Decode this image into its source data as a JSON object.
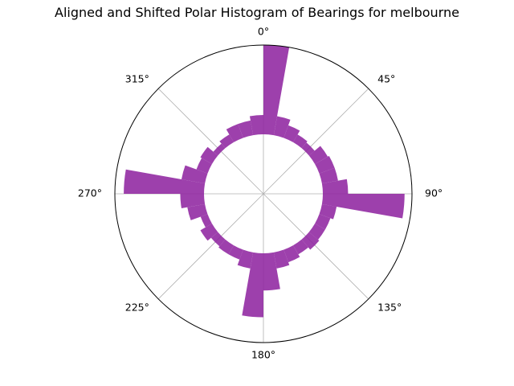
{
  "chart_data": {
    "type": "polar-histogram",
    "title": "Aligned and Shifted Polar Histogram of Bearings for melbourne",
    "theta_direction": "clockwise",
    "theta_zero": "north",
    "theta_tick_labels": [
      "0°",
      "45°",
      "90°",
      "135°",
      "180°",
      "225°",
      "270°",
      "315°"
    ],
    "theta_ticks_deg": [
      0,
      45,
      90,
      135,
      180,
      225,
      270,
      315
    ],
    "bin_width_deg": 10,
    "r_inner": 0.4,
    "r_max": 1.0,
    "bar_color": "#8e24a0",
    "bar_alpha": 0.87,
    "grid": true,
    "bins": [
      {
        "center": 5,
        "value": 1.0
      },
      {
        "center": 15,
        "value": 0.53
      },
      {
        "center": 25,
        "value": 0.49
      },
      {
        "center": 35,
        "value": 0.46
      },
      {
        "center": 45,
        "value": 0.45
      },
      {
        "center": 55,
        "value": 0.5
      },
      {
        "center": 65,
        "value": 0.51
      },
      {
        "center": 75,
        "value": 0.51
      },
      {
        "center": 85,
        "value": 0.57
      },
      {
        "center": 95,
        "value": 0.95
      },
      {
        "center": 105,
        "value": 0.5
      },
      {
        "center": 115,
        "value": 0.48
      },
      {
        "center": 125,
        "value": 0.48
      },
      {
        "center": 135,
        "value": 0.49
      },
      {
        "center": 145,
        "value": 0.47
      },
      {
        "center": 155,
        "value": 0.49
      },
      {
        "center": 165,
        "value": 0.51
      },
      {
        "center": 175,
        "value": 0.65
      },
      {
        "center": 185,
        "value": 0.83
      },
      {
        "center": 195,
        "value": 0.51
      },
      {
        "center": 205,
        "value": 0.47
      },
      {
        "center": 215,
        "value": 0.47
      },
      {
        "center": 225,
        "value": 0.46
      },
      {
        "center": 235,
        "value": 0.49
      },
      {
        "center": 245,
        "value": 0.45
      },
      {
        "center": 255,
        "value": 0.52
      },
      {
        "center": 265,
        "value": 0.56
      },
      {
        "center": 275,
        "value": 0.94
      },
      {
        "center": 285,
        "value": 0.56
      },
      {
        "center": 295,
        "value": 0.48
      },
      {
        "center": 305,
        "value": 0.49
      },
      {
        "center": 315,
        "value": 0.44
      },
      {
        "center": 325,
        "value": 0.46
      },
      {
        "center": 335,
        "value": 0.5
      },
      {
        "center": 345,
        "value": 0.5
      },
      {
        "center": 355,
        "value": 0.53
      }
    ]
  }
}
